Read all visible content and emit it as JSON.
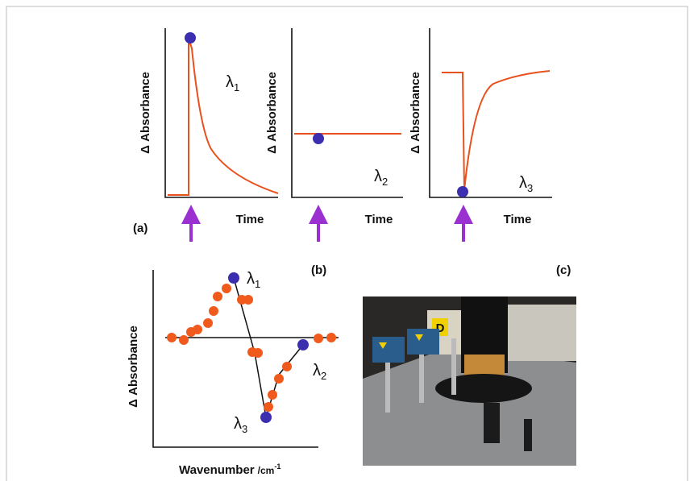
{
  "panels": {
    "a": {
      "label": "(a)",
      "plots": [
        {
          "y_label": "Δ Absorbance",
          "x_label": "Time",
          "symbol": "λ",
          "subscript": "1"
        },
        {
          "y_label": "Δ Absorbance",
          "x_label": "Time",
          "symbol": "λ",
          "subscript": "2"
        },
        {
          "y_label": "Δ Absorbance",
          "x_label": "Time",
          "symbol": "λ",
          "subscript": "3"
        }
      ]
    },
    "b": {
      "label": "(b)",
      "y_label": "Δ Absorbance",
      "x_label": "Wavenumber",
      "x_unit": "/cm",
      "x_unit_exp": "-1",
      "points": [
        {
          "symbol": "λ",
          "subscript": "1"
        },
        {
          "symbol": "λ",
          "subscript": "2"
        },
        {
          "symbol": "λ",
          "subscript": "3"
        }
      ]
    },
    "c": {
      "label": "(c)",
      "sticker": "D"
    }
  }
}
